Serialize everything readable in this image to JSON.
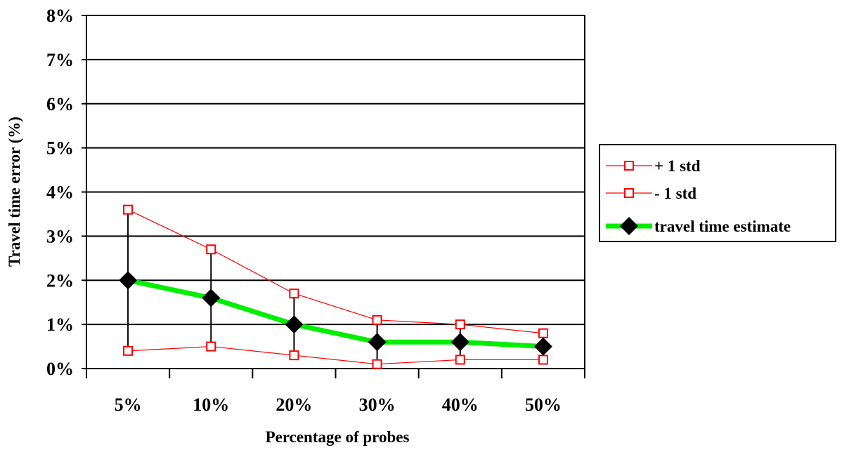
{
  "chart_data": {
    "type": "line",
    "title": "",
    "xlabel": "Percentage of probes",
    "ylabel": "Travel time error (%)",
    "categories": [
      "5%",
      "10%",
      "20%",
      "30%",
      "40%",
      "50%"
    ],
    "yticks": [
      "0%",
      "1%",
      "2%",
      "3%",
      "4%",
      "5%",
      "6%",
      "7%",
      "8%"
    ],
    "ylim": [
      0,
      8
    ],
    "grid": true,
    "legend_position": "right",
    "series": [
      {
        "name": "+ 1 std",
        "values": [
          3.6,
          2.7,
          1.7,
          1.1,
          1.0,
          0.8
        ],
        "color": "#ff0000",
        "marker": "open-square"
      },
      {
        "name": "- 1 std",
        "values": [
          0.4,
          0.5,
          0.3,
          0.1,
          0.2,
          0.2
        ],
        "color": "#ff0000",
        "marker": "open-square"
      },
      {
        "name": "travel time estimate",
        "values": [
          2.0,
          1.6,
          1.0,
          0.6,
          0.6,
          0.5
        ],
        "color": "#00ee00",
        "marker": "filled-diamond"
      }
    ],
    "error_bars": true
  }
}
